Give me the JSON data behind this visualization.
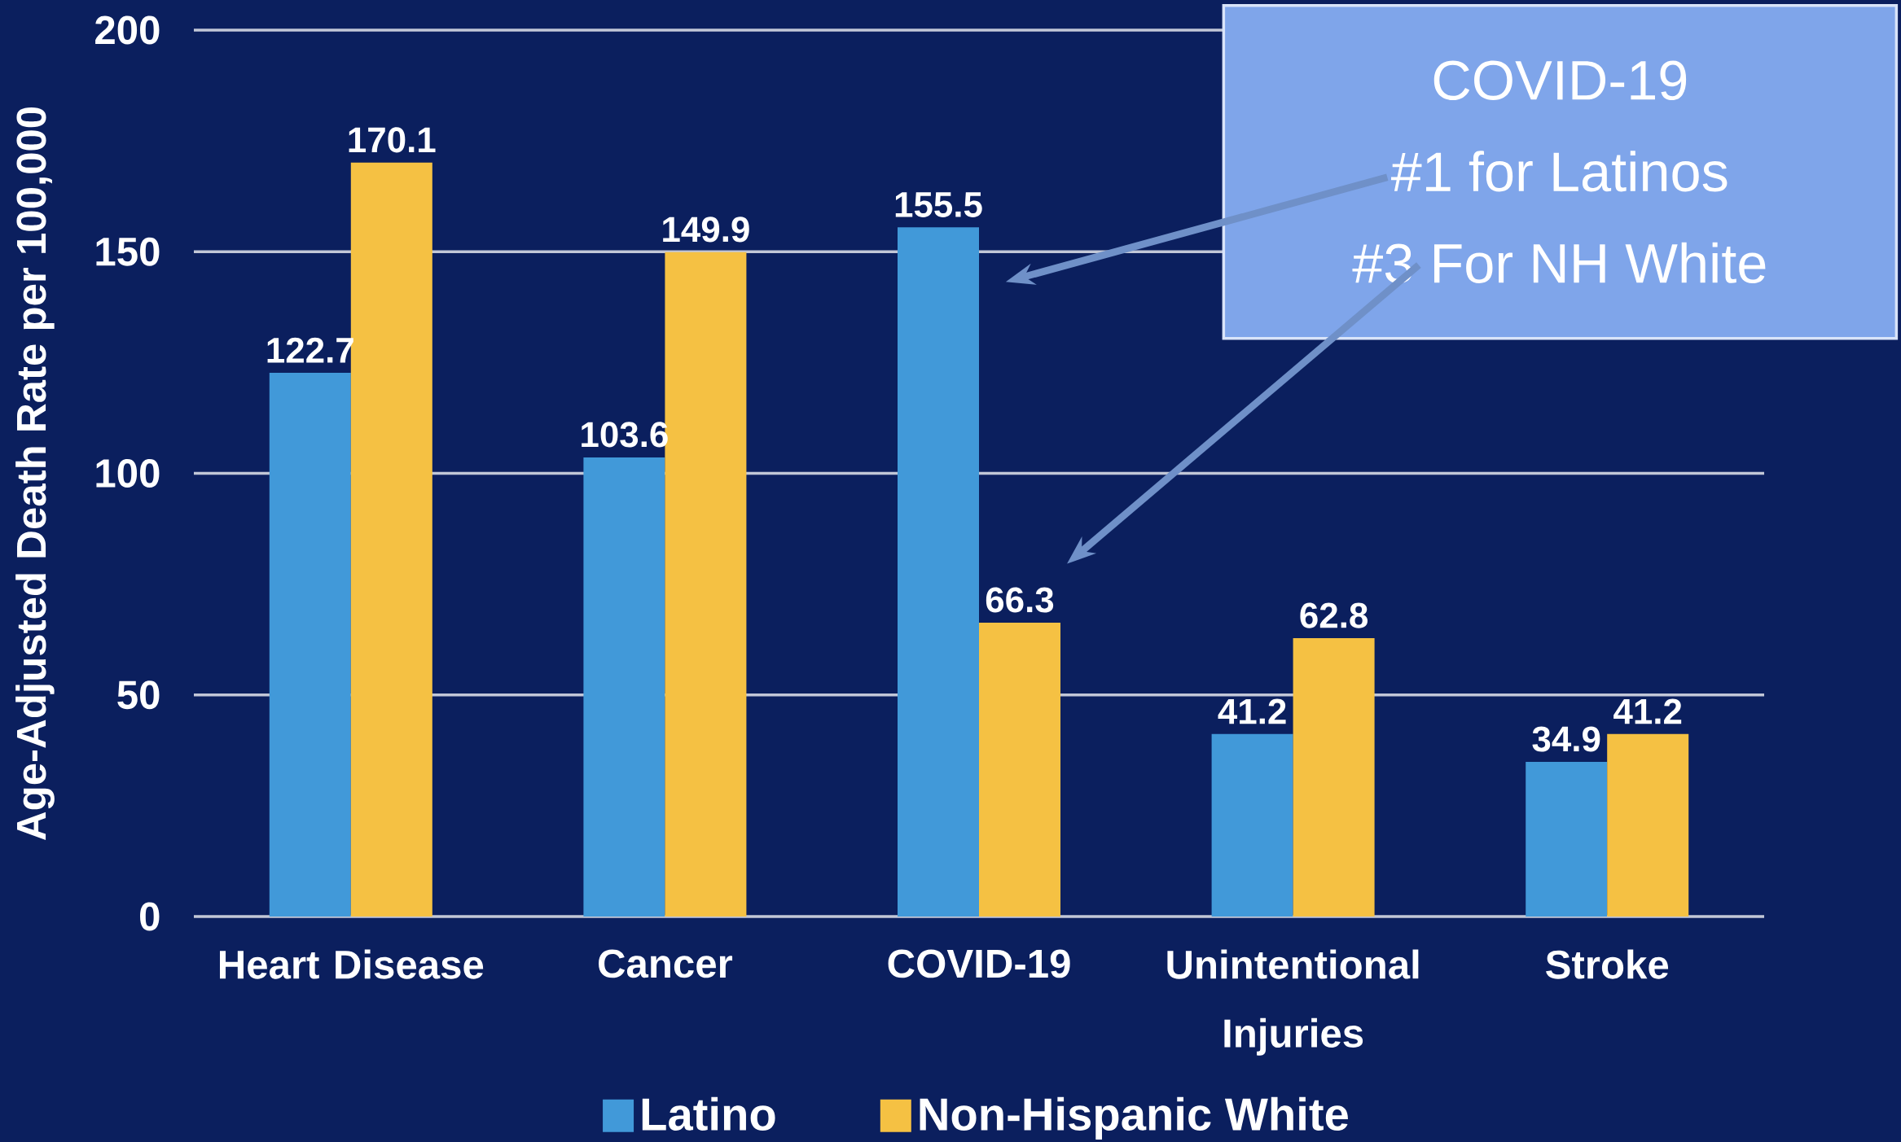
{
  "chart_data": {
    "type": "bar",
    "ylabel": "Age-Adjusted Death Rate per 100,000",
    "categories": [
      "Heart Disease",
      "Cancer",
      "COVID-19",
      "Unintentional Injuries",
      "Stroke"
    ],
    "series": [
      {
        "name": "Latino",
        "color": "#4199d9",
        "values": [
          122.7,
          103.6,
          155.5,
          41.2,
          34.9
        ]
      },
      {
        "name": "Non-Hispanic White",
        "color": "#f5c143",
        "values": [
          170.1,
          149.9,
          66.3,
          62.8,
          41.2
        ]
      }
    ],
    "ylim": [
      0,
      200
    ],
    "yticks": [
      0,
      50,
      100,
      150,
      200
    ],
    "grid": "y",
    "legend": "bottom",
    "data_labels": true,
    "annotations": [
      "COVID-19",
      "#1 for Latinos",
      "#3 For NH White"
    ]
  }
}
